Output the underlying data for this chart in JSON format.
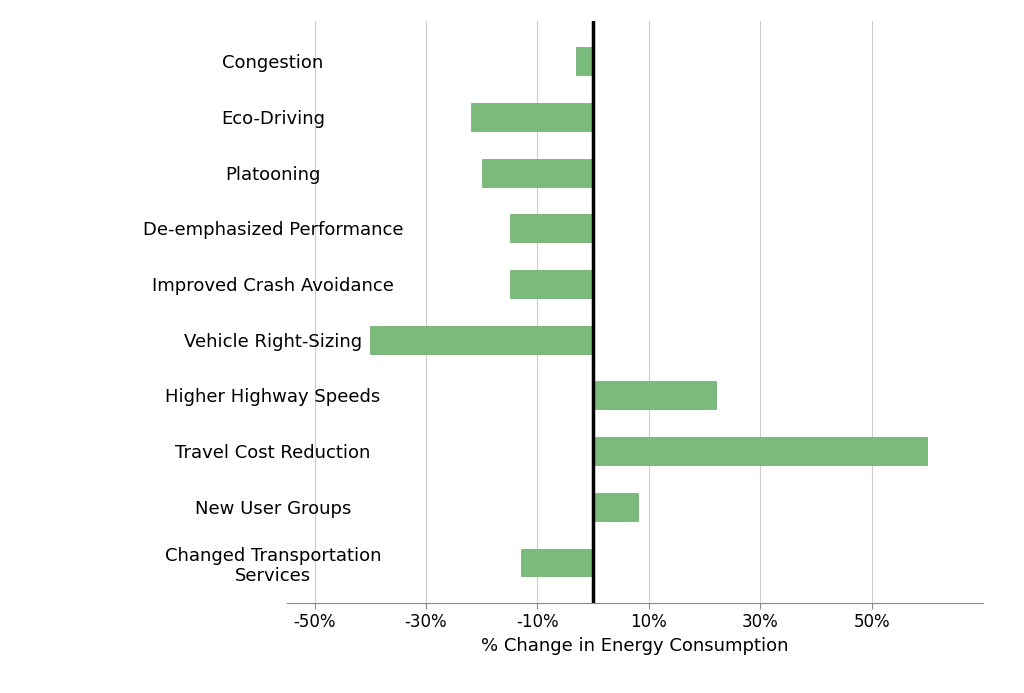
{
  "categories": [
    "Changed Transportation\nServices",
    "New User Groups",
    "Travel Cost Reduction",
    "Higher Highway Speeds",
    "Vehicle Right-Sizing",
    "Improved Crash Avoidance",
    "De-emphasized Performance",
    "Platooning",
    "Eco-Driving",
    "Congestion"
  ],
  "values": [
    -13,
    8,
    60,
    22,
    -40,
    -15,
    -15,
    -20,
    -22,
    -3
  ],
  "bar_color": "#7aba7a",
  "bar_edgecolor": "#6aaa6a",
  "xlabel": "% Change in Energy Consumption",
  "xlim": [
    -55,
    70
  ],
  "xticks": [
    -50,
    -30,
    -10,
    10,
    30,
    50
  ],
  "xtick_labels": [
    "-50%",
    "-30%",
    "-10%",
    "10%",
    "30%",
    "50%"
  ],
  "vline_x": 0,
  "grid_color": "#cccccc",
  "background_color": "#ffffff",
  "xlabel_fontsize": 13,
  "tick_fontsize": 12,
  "label_fontsize": 13,
  "bar_height": 0.5
}
